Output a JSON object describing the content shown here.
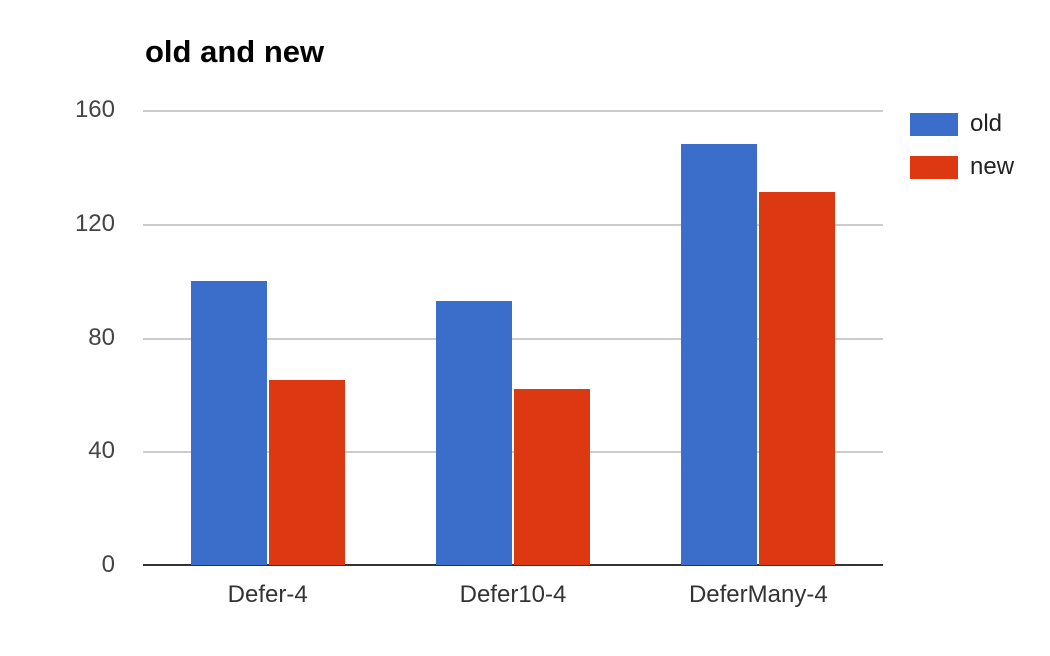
{
  "chart_data": {
    "type": "bar",
    "title": "old and new",
    "categories": [
      "Defer-4",
      "Defer10-4",
      "DeferMany-4"
    ],
    "series": [
      {
        "name": "old",
        "color": "#3b6dca",
        "values": [
          100,
          93,
          148
        ]
      },
      {
        "name": "new",
        "color": "#dc3912",
        "values": [
          65,
          62,
          131
        ]
      }
    ],
    "xlabel": "",
    "ylabel": "",
    "ylim": [
      0,
      160
    ],
    "yticks": [
      0,
      40,
      80,
      120,
      160
    ],
    "grid": true,
    "legend_position": "right",
    "colors": {
      "grid_line": "#cccccc",
      "axis_line": "#333333",
      "tick_text": "#444444",
      "category_text": "#333333",
      "title_text": "#000000",
      "background": "#ffffff"
    }
  }
}
